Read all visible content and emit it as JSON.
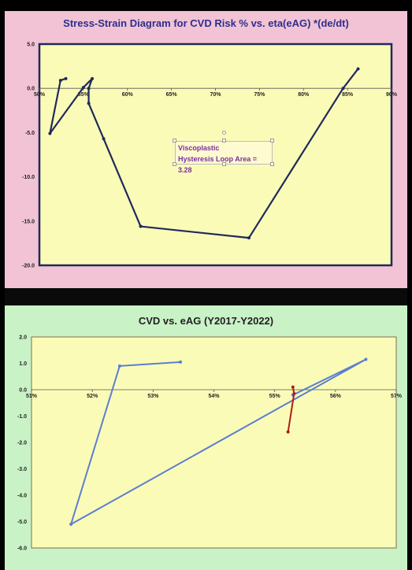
{
  "chart_data": [
    {
      "type": "line",
      "title": "Stress-Strain Diagram for CVD Risk % vs. eta(eAG) *(de/dt)",
      "xlim": [
        50,
        90
      ],
      "ylim": [
        -20,
        5
      ],
      "xticks": [
        "50%",
        "55%",
        "60%",
        "65%",
        "70%",
        "75%",
        "80%",
        "85%",
        "90%"
      ],
      "yticks": [
        "5.0",
        "0.0",
        "-5.0",
        "-10.0",
        "-15.0",
        "-20.0"
      ],
      "x_axis_at_y": 0,
      "background": "#fbfbb8",
      "panel_color": "#f2c3d4",
      "line_color": "#1f2a5a",
      "series": [
        {
          "x": [
            53.0,
            52.4,
            51.2,
            55.0,
            56.0,
            55.6,
            55.6,
            57.3,
            61.5,
            73.8,
            84.5,
            86.2
          ],
          "y": [
            1.1,
            0.9,
            -5.1,
            0.1,
            1.1,
            0.0,
            -1.7,
            -5.7,
            -15.6,
            -16.9,
            0.0,
            2.2
          ]
        }
      ],
      "annotation": {
        "line1": "Viscoplastic",
        "line2": "Hysteresis Loop Area = 3.28"
      }
    },
    {
      "type": "line",
      "title": "CVD vs. eAG  (Y2017-Y2022)",
      "xlim": [
        51,
        57
      ],
      "ylim": [
        -6,
        2
      ],
      "xticks": [
        "51%",
        "52%",
        "53%",
        "54%",
        "55%",
        "56%",
        "57%"
      ],
      "yticks": [
        "2.0",
        "1.0",
        "0.0",
        "-1.0",
        "-2.0",
        "-3.0",
        "-4.0",
        "-5.0",
        "-6.0"
      ],
      "x_axis_at_y": 0,
      "background": "#fbfbb8",
      "panel_color": "#c9f2c6",
      "series": [
        {
          "color": "#5a7fd0",
          "x": [
            53.45,
            52.45,
            51.65,
            56.5,
            55.3
          ],
          "y": [
            1.05,
            0.9,
            -5.1,
            1.15,
            -0.2
          ]
        },
        {
          "color": "#b01e14",
          "x": [
            55.3,
            55.32,
            55.22
          ],
          "y": [
            0.1,
            -0.15,
            -1.6
          ]
        }
      ]
    }
  ]
}
